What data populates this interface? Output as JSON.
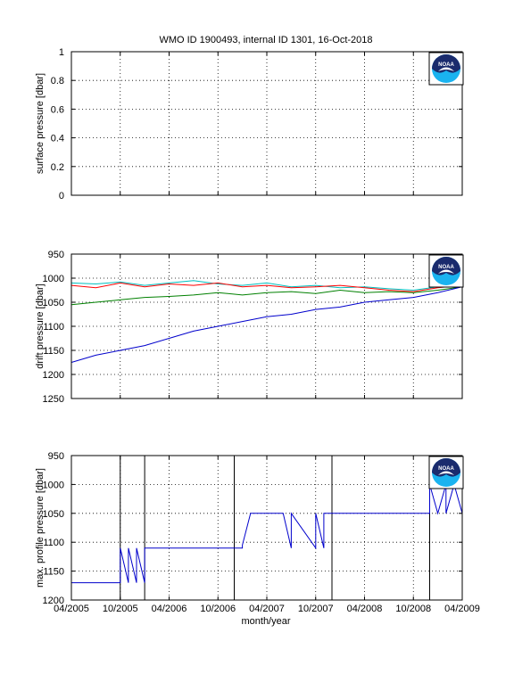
{
  "title": "WMO ID 1900493, internal ID 1301, 16-Oct-2018",
  "xlabel": "month/year",
  "x_ticks": [
    "04/2005",
    "10/2005",
    "04/2006",
    "10/2006",
    "04/2007",
    "10/2007",
    "04/2008",
    "10/2008",
    "04/2009"
  ],
  "logo": {
    "name": "noaa-logo",
    "text": "NOAA",
    "colors": {
      "navy": "#1a2b6d",
      "sky": "#1ab3f0",
      "white": "#ffffff"
    }
  },
  "chart_data": [
    {
      "type": "line",
      "ylabel": "surface pressure [dbar]",
      "xlim": [
        "2005-04",
        "2009-04"
      ],
      "ylim": [
        0,
        1
      ],
      "y_reversed": false,
      "y_ticks": [
        "0",
        "0.2",
        "0.4",
        "0.6",
        "0.8",
        "1"
      ],
      "grid": true,
      "series": []
    },
    {
      "type": "line",
      "ylabel": "drift pressure [dbar]",
      "xlim": [
        "2005-04",
        "2009-04"
      ],
      "ylim": [
        950,
        1250
      ],
      "y_reversed": true,
      "y_ticks": [
        "950",
        "1000",
        "1050",
        "1100",
        "1150",
        "1200",
        "1250"
      ],
      "grid": true,
      "series": [
        {
          "color": "#00bfbf",
          "x": [
            "2005-04",
            "2005-07",
            "2005-10",
            "2006-01",
            "2006-04",
            "2006-07",
            "2006-10",
            "2007-01",
            "2007-04",
            "2007-07",
            "2007-10",
            "2008-01",
            "2008-04",
            "2008-07",
            "2008-10",
            "2009-01",
            "2009-04"
          ],
          "values": [
            1010,
            1012,
            1008,
            1015,
            1010,
            1005,
            1012,
            1015,
            1010,
            1018,
            1015,
            1020,
            1018,
            1022,
            1025,
            1018,
            1010
          ]
        },
        {
          "color": "#ff0000",
          "x": [
            "2005-04",
            "2005-07",
            "2005-10",
            "2006-01",
            "2006-04",
            "2006-07",
            "2006-10",
            "2007-01",
            "2007-04",
            "2007-07",
            "2007-10",
            "2008-01",
            "2008-04",
            "2008-07",
            "2008-10",
            "2009-01",
            "2009-04"
          ],
          "values": [
            1015,
            1020,
            1010,
            1018,
            1012,
            1015,
            1010,
            1018,
            1015,
            1020,
            1018,
            1015,
            1020,
            1025,
            1028,
            1020,
            1015
          ]
        },
        {
          "color": "#008000",
          "x": [
            "2005-04",
            "2005-07",
            "2005-10",
            "2006-01",
            "2006-04",
            "2006-07",
            "2006-10",
            "2007-01",
            "2007-04",
            "2007-07",
            "2007-10",
            "2008-01",
            "2008-04",
            "2008-07",
            "2008-10",
            "2009-01",
            "2009-04"
          ],
          "values": [
            1055,
            1050,
            1045,
            1040,
            1038,
            1035,
            1030,
            1035,
            1030,
            1028,
            1032,
            1025,
            1030,
            1028,
            1030,
            1025,
            1018
          ]
        },
        {
          "color": "#0000cc",
          "x": [
            "2005-04",
            "2005-07",
            "2005-10",
            "2006-01",
            "2006-04",
            "2006-07",
            "2006-10",
            "2007-01",
            "2007-04",
            "2007-07",
            "2007-10",
            "2008-01",
            "2008-04",
            "2008-07",
            "2008-10",
            "2009-01",
            "2009-04"
          ],
          "values": [
            1175,
            1160,
            1150,
            1140,
            1125,
            1110,
            1100,
            1090,
            1080,
            1075,
            1065,
            1060,
            1050,
            1045,
            1040,
            1030,
            1018
          ]
        }
      ]
    },
    {
      "type": "line",
      "ylabel": "max. profile pressure [dbar]",
      "xlim": [
        "2005-04",
        "2009-04"
      ],
      "ylim": [
        950,
        1200
      ],
      "y_reversed": true,
      "y_ticks": [
        "950",
        "1000",
        "1050",
        "1100",
        "1150",
        "1200"
      ],
      "grid": true,
      "vlines": [
        "2005-10",
        "2006-01",
        "2006-12",
        "2007-12",
        "2008-12",
        "2009-04"
      ],
      "series": [
        {
          "color": "#0000cc",
          "x": [
            "2005-04",
            "2005-09",
            "2005-10",
            "2005-10",
            "2005-11",
            "2005-11",
            "2005-12",
            "2005-12",
            "2006-01",
            "2006-01",
            "2007-01",
            "2007-01",
            "2007-02",
            "2007-06",
            "2007-07",
            "2007-07",
            "2007-10",
            "2007-10",
            "2007-11",
            "2007-11",
            "2007-12",
            "2008-06",
            "2008-09",
            "2008-12",
            "2008-12",
            "2009-01",
            "2009-02",
            "2009-02",
            "2009-03",
            "2009-04"
          ],
          "values": [
            1170,
            1170,
            1170,
            1110,
            1170,
            1110,
            1170,
            1110,
            1170,
            1110,
            1110,
            1105,
            1050,
            1050,
            1110,
            1050,
            1110,
            1050,
            1110,
            1050,
            1050,
            1050,
            1050,
            1050,
            1000,
            1050,
            1000,
            1050,
            1000,
            1050
          ]
        }
      ]
    }
  ]
}
